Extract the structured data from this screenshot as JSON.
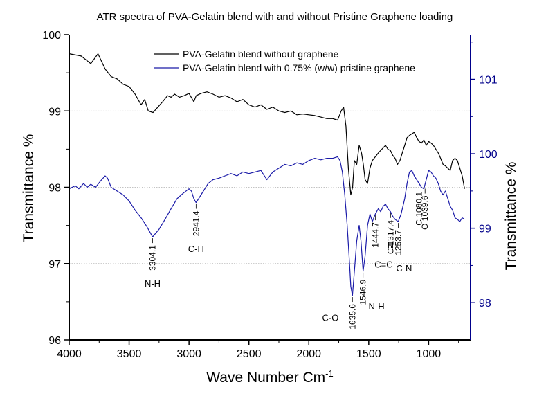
{
  "chart_data": {
    "type": "line",
    "title": "ATR spectra of PVA-Gelatin blend with and without Pristine Graphene loading",
    "xlabel": "Wave Number Cm",
    "xlabel_sup": "-1",
    "ylabel_left": "Transmittance %",
    "ylabel_right": "Transmittance %",
    "x_range": [
      4000,
      650
    ],
    "x_reversed": true,
    "x_ticks": [
      4000,
      3500,
      3000,
      2500,
      2000,
      1500,
      1000
    ],
    "y_left_range": [
      96,
      100
    ],
    "y_left_ticks": [
      96,
      97,
      98,
      99,
      100
    ],
    "y_right_range": [
      97.5,
      101.6
    ],
    "y_right_ticks": [
      98,
      99,
      100,
      101
    ],
    "grid_y": true,
    "legend_position": "top",
    "colors": {
      "series1": "#000000",
      "series2": "#1a1aa8",
      "right_axis": "#00008b"
    },
    "series": [
      {
        "name": "PVA-Gelatin blend without graphene",
        "axis": "left",
        "x": [
          4000,
          3900,
          3820,
          3760,
          3700,
          3650,
          3600,
          3550,
          3500,
          3450,
          3400,
          3370,
          3340,
          3300,
          3260,
          3220,
          3180,
          3150,
          3120,
          3080,
          3040,
          3000,
          2960,
          2940,
          2900,
          2850,
          2800,
          2750,
          2700,
          2650,
          2600,
          2550,
          2500,
          2450,
          2400,
          2350,
          2300,
          2250,
          2200,
          2150,
          2100,
          2050,
          2000,
          1950,
          1900,
          1850,
          1800,
          1760,
          1730,
          1710,
          1690,
          1670,
          1650,
          1635,
          1620,
          1600,
          1580,
          1560,
          1545,
          1530,
          1510,
          1490,
          1470,
          1445,
          1420,
          1390,
          1360,
          1340,
          1318,
          1300,
          1280,
          1260,
          1240,
          1220,
          1200,
          1180,
          1160,
          1140,
          1120,
          1100,
          1080,
          1060,
          1040,
          1020,
          1000,
          980,
          960,
          940,
          920,
          900,
          880,
          860,
          840,
          820,
          800,
          780,
          760,
          740,
          720,
          700
        ],
        "y": [
          99.75,
          99.72,
          99.62,
          99.75,
          99.55,
          99.45,
          99.42,
          99.35,
          99.32,
          99.22,
          99.08,
          99.15,
          99.0,
          98.98,
          99.05,
          99.12,
          99.2,
          99.18,
          99.22,
          99.18,
          99.2,
          99.23,
          99.12,
          99.2,
          99.23,
          99.25,
          99.22,
          99.18,
          99.2,
          99.17,
          99.12,
          99.15,
          99.08,
          99.05,
          99.08,
          99.02,
          99.05,
          99.0,
          98.98,
          99.0,
          98.95,
          98.96,
          98.95,
          98.94,
          98.92,
          98.9,
          98.9,
          98.88,
          99.0,
          99.05,
          98.8,
          98.25,
          97.9,
          98.0,
          98.35,
          98.3,
          98.55,
          98.45,
          98.3,
          98.1,
          98.05,
          98.25,
          98.35,
          98.4,
          98.45,
          98.5,
          98.55,
          98.5,
          98.48,
          98.42,
          98.38,
          98.3,
          98.35,
          98.45,
          98.55,
          98.65,
          98.68,
          98.7,
          98.72,
          98.65,
          98.6,
          98.58,
          98.62,
          98.55,
          98.6,
          98.58,
          98.55,
          98.5,
          98.45,
          98.38,
          98.3,
          98.28,
          98.25,
          98.22,
          98.35,
          98.38,
          98.35,
          98.25,
          98.15,
          97.98
        ]
      },
      {
        "name": "PVA-Gelatin blend with 0.75% (w/w) pristine graphene",
        "axis": "left",
        "x": [
          4000,
          3950,
          3920,
          3880,
          3850,
          3820,
          3780,
          3740,
          3700,
          3680,
          3650,
          3600,
          3550,
          3500,
          3450,
          3400,
          3350,
          3304,
          3250,
          3200,
          3150,
          3100,
          3050,
          3000,
          2980,
          2960,
          2941,
          2920,
          2880,
          2840,
          2800,
          2750,
          2700,
          2650,
          2600,
          2550,
          2500,
          2450,
          2400,
          2350,
          2300,
          2250,
          2200,
          2150,
          2100,
          2050,
          2000,
          1950,
          1900,
          1850,
          1800,
          1760,
          1740,
          1720,
          1700,
          1680,
          1660,
          1650,
          1636,
          1620,
          1600,
          1580,
          1565,
          1547,
          1530,
          1510,
          1490,
          1470,
          1445,
          1420,
          1400,
          1380,
          1360,
          1340,
          1318,
          1300,
          1280,
          1254,
          1230,
          1200,
          1180,
          1160,
          1140,
          1120,
          1100,
          1080,
          1060,
          1040,
          1020,
          1000,
          980,
          960,
          940,
          920,
          900,
          880,
          860,
          840,
          820,
          800,
          780,
          760,
          740,
          720,
          700
        ],
        "y": [
          97.98,
          98.02,
          97.98,
          98.05,
          98.0,
          98.04,
          98.0,
          98.08,
          98.15,
          98.12,
          98.0,
          97.95,
          97.9,
          97.82,
          97.7,
          97.6,
          97.48,
          97.35,
          97.45,
          97.58,
          97.72,
          97.85,
          97.92,
          97.98,
          97.95,
          97.85,
          97.8,
          97.85,
          97.95,
          98.05,
          98.1,
          98.12,
          98.15,
          98.18,
          98.15,
          98.2,
          98.18,
          98.2,
          98.22,
          98.1,
          98.2,
          98.25,
          98.3,
          98.28,
          98.32,
          98.3,
          98.35,
          98.38,
          98.36,
          98.38,
          98.38,
          98.4,
          98.35,
          98.2,
          97.9,
          97.5,
          97.0,
          96.7,
          96.58,
          96.9,
          97.3,
          97.5,
          97.3,
          96.9,
          97.1,
          97.5,
          97.65,
          97.55,
          97.65,
          97.72,
          97.68,
          97.75,
          97.78,
          97.72,
          97.68,
          97.62,
          97.58,
          97.55,
          97.65,
          97.85,
          98.05,
          98.2,
          98.22,
          98.15,
          98.1,
          98.05,
          98.0,
          97.98,
          98.1,
          98.22,
          98.2,
          98.15,
          98.12,
          98.05,
          97.95,
          97.9,
          97.95,
          97.85,
          97.75,
          97.7,
          97.6,
          97.58,
          97.55,
          97.6,
          97.58
        ]
      }
    ],
    "annotations": [
      {
        "text": "3304.1",
        "x": 3304,
        "y": 97.35,
        "rotate": true,
        "series": 2
      },
      {
        "text": "N-H",
        "x": 3304,
        "y": 96.7,
        "rotate": false,
        "series": 2
      },
      {
        "text": "2941.4",
        "x": 2941,
        "y": 97.8,
        "rotate": true,
        "series": 2
      },
      {
        "text": "C-H",
        "x": 2941,
        "y": 97.15,
        "rotate": false,
        "series": 2
      },
      {
        "text": "1635.6",
        "x": 1636,
        "y": 96.58,
        "rotate": true,
        "series": 2
      },
      {
        "text": "C-O",
        "x": 1820,
        "y": 96.25,
        "rotate": false,
        "series": 2
      },
      {
        "text": "1546.9",
        "x": 1547,
        "y": 96.9,
        "rotate": true,
        "series": 2
      },
      {
        "text": "N-H",
        "x": 1435,
        "y": 96.4,
        "rotate": false,
        "series": 2
      },
      {
        "text": "1444.7",
        "x": 1445,
        "y": 97.65,
        "rotate": true,
        "series": 2
      },
      {
        "text": "C=C",
        "x": 1375,
        "y": 96.95,
        "rotate": false,
        "series": 2
      },
      {
        "text": "C-1317.4",
        "x": 1318,
        "y": 97.68,
        "rotate": true,
        "series": 2
      },
      {
        "text": "H",
        "x": 1318,
        "y": 97.2,
        "rotate": false,
        "series": 2
      },
      {
        "text": "1253.7",
        "x": 1254,
        "y": 97.55,
        "rotate": true,
        "series": 2
      },
      {
        "text": "C-N",
        "x": 1205,
        "y": 96.9,
        "rotate": false,
        "series": 2
      },
      {
        "text": "C 1080.1",
        "x": 1080,
        "y": 98.05,
        "rotate": true,
        "series": 2
      },
      {
        "text": "O 1039.6",
        "x": 1030,
        "y": 98.0,
        "rotate": true,
        "series": 2
      }
    ]
  }
}
